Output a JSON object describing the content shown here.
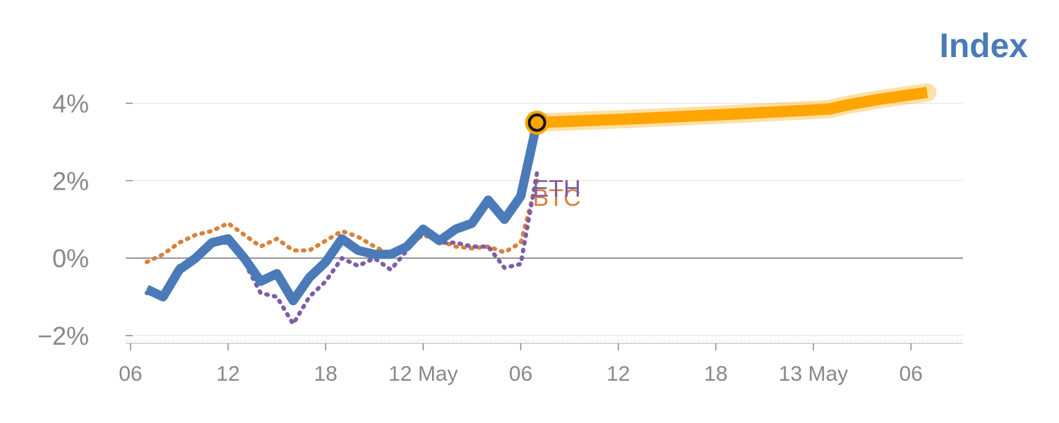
{
  "chart_data": {
    "type": "line",
    "title": "Index",
    "xlabel": "",
    "ylabel": "",
    "ylim": [
      -2.2,
      4.3
    ],
    "y_ticks": [
      {
        "value": 4,
        "label": "4%"
      },
      {
        "value": 2,
        "label": "2%"
      },
      {
        "value": 0,
        "label": "0%"
      },
      {
        "value": -2,
        "label": "−2%"
      }
    ],
    "x_ticks": [
      {
        "index": 0,
        "label": "06"
      },
      {
        "index": 6,
        "label": "12"
      },
      {
        "index": 12,
        "label": "18"
      },
      {
        "index": 18,
        "label": "12 May"
      },
      {
        "index": 24,
        "label": "06"
      },
      {
        "index": 30,
        "label": "12"
      },
      {
        "index": 36,
        "label": "18"
      },
      {
        "index": 42,
        "label": "13 May"
      },
      {
        "index": 48,
        "label": "06"
      }
    ],
    "x_range": [
      -0.3,
      51.2
    ],
    "grid": true,
    "series": [
      {
        "name": "",
        "role": "index",
        "color": "#4a7ab8",
        "x": [
          1,
          2,
          3,
          4,
          5,
          6,
          7,
          8,
          9,
          10,
          11,
          12,
          13,
          14,
          15,
          16,
          17,
          18,
          19,
          20,
          21,
          22,
          23,
          24,
          25
        ],
        "values": [
          -0.8,
          -1.0,
          -0.3,
          0.0,
          0.4,
          0.5,
          0.0,
          -0.6,
          -0.4,
          -1.1,
          -0.5,
          -0.1,
          0.5,
          0.2,
          0.1,
          0.1,
          0.3,
          0.75,
          0.45,
          0.75,
          0.9,
          1.5,
          1.0,
          1.6,
          3.5
        ]
      },
      {
        "name": "BTC",
        "role": "comparison",
        "color": "#d9823b",
        "x": [
          1,
          2,
          3,
          4,
          5,
          6,
          7,
          8,
          9,
          10,
          11,
          12,
          13,
          14,
          15,
          16,
          17,
          18,
          19,
          20,
          21,
          22,
          23,
          24,
          25
        ],
        "values": [
          -0.1,
          0.1,
          0.4,
          0.6,
          0.7,
          0.9,
          0.6,
          0.3,
          0.5,
          0.2,
          0.2,
          0.45,
          0.7,
          0.55,
          0.3,
          0.1,
          0.3,
          0.6,
          0.45,
          0.3,
          0.25,
          0.3,
          0.15,
          0.4,
          2.0
        ]
      },
      {
        "name": "ETH",
        "role": "comparison",
        "color": "#7b5ea7",
        "x": [
          1,
          2,
          3,
          4,
          5,
          6,
          7,
          8,
          9,
          10,
          11,
          12,
          13,
          14,
          15,
          16,
          17,
          18,
          19,
          20,
          21,
          22,
          23,
          24,
          25
        ],
        "values": [
          -0.9,
          -0.9,
          -0.2,
          0.0,
          0.4,
          0.4,
          -0.1,
          -0.9,
          -1.0,
          -1.7,
          -1.0,
          -0.6,
          0.0,
          -0.2,
          0.0,
          -0.3,
          0.2,
          0.7,
          0.4,
          0.4,
          0.3,
          0.3,
          -0.25,
          -0.15,
          2.2
        ]
      },
      {
        "name": "",
        "role": "projection",
        "color": "#ffa500",
        "x": [
          25,
          31,
          37,
          43,
          44,
          46,
          49
        ],
        "values": [
          3.5,
          3.6,
          3.72,
          3.85,
          3.95,
          4.1,
          4.28
        ]
      }
    ],
    "highlight_point": {
      "x": 25,
      "y": 3.5
    },
    "colors": {
      "axis_zero": "#777777",
      "grid": "#e5e5e5",
      "tick_text": "#888888",
      "title": "#4a7ab8"
    }
  }
}
